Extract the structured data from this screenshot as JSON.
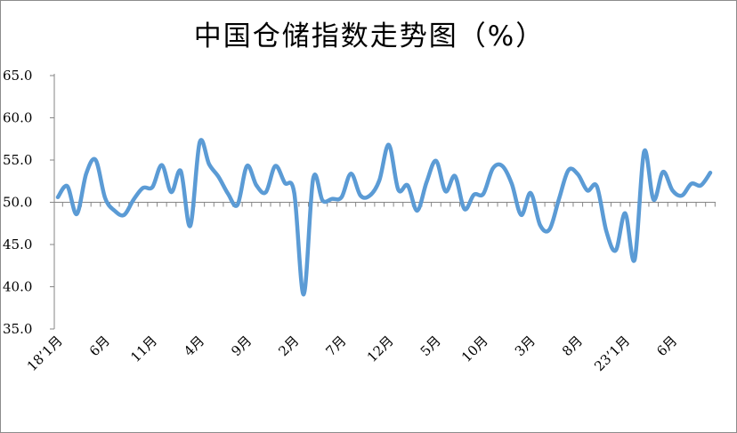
{
  "chart_data": {
    "type": "line",
    "title": "中国仓储指数走势图（%）",
    "xlabel": "",
    "ylabel": "",
    "ylim": [
      35.0,
      65.0
    ],
    "y_ticks": [
      "35.0",
      "40.0",
      "45.0",
      "50.0",
      "55.0",
      "60.0",
      "65.0"
    ],
    "x_axis_crosses_at": 50.0,
    "grid": false,
    "legend": "none",
    "line_color": "#5b9bd5",
    "x_tick_labels": [
      {
        "index": 0,
        "label": "18’1月"
      },
      {
        "index": 5,
        "label": "6月"
      },
      {
        "index": 10,
        "label": "11月"
      },
      {
        "index": 15,
        "label": "4月"
      },
      {
        "index": 20,
        "label": "9月"
      },
      {
        "index": 25,
        "label": "2月"
      },
      {
        "index": 30,
        "label": "7月"
      },
      {
        "index": 35,
        "label": "12月"
      },
      {
        "index": 40,
        "label": "5月"
      },
      {
        "index": 45,
        "label": "10月"
      },
      {
        "index": 50,
        "label": "3月"
      },
      {
        "index": 55,
        "label": "8月"
      },
      {
        "index": 60,
        "label": "23’1月"
      },
      {
        "index": 65,
        "label": "6月"
      }
    ],
    "values": [
      50.6,
      51.9,
      48.6,
      53.4,
      55.0,
      50.5,
      49.0,
      48.5,
      50.3,
      51.7,
      51.8,
      54.4,
      51.2,
      53.7,
      47.2,
      57.1,
      54.5,
      53.0,
      51.0,
      49.7,
      54.3,
      52.0,
      51.2,
      54.3,
      52.3,
      51.1,
      39.1,
      52.8,
      50.2,
      50.4,
      50.6,
      53.4,
      50.8,
      50.8,
      52.6,
      56.8,
      51.5,
      52.0,
      49.0,
      52.4,
      54.9,
      51.3,
      53.1,
      49.2,
      50.9,
      51.0,
      54.0,
      54.3,
      52.2,
      48.5,
      51.1,
      47.3,
      46.8,
      50.4,
      53.8,
      53.3,
      51.4,
      51.9,
      46.6,
      44.3,
      48.7,
      43.2,
      56.0,
      50.3,
      53.6,
      51.4,
      50.8,
      52.2,
      52.0,
      53.5
    ]
  }
}
